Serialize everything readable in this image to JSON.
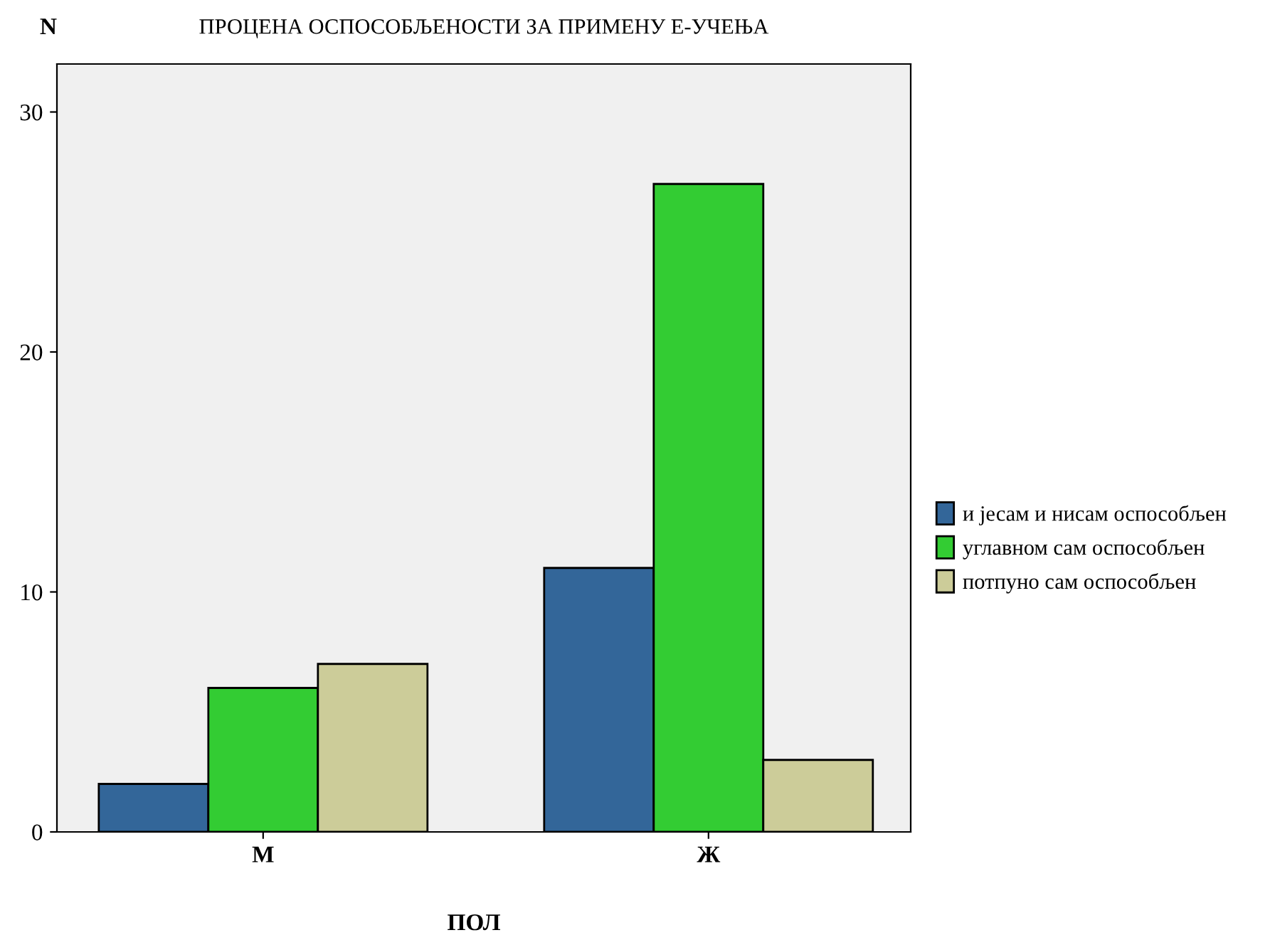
{
  "chart_data": {
    "type": "bar",
    "title": "ПРОЦЕНА ОСПОСОБЉЕНОСТИ ЗА ПРИМЕНУ Е-УЧЕЊА",
    "ylabel": "N",
    "xlabel": "ПОЛ",
    "categories": [
      "М",
      "Ж"
    ],
    "series": [
      {
        "name": "и јесам и нисам оспособљен",
        "color": "#336699",
        "values": [
          2,
          11
        ]
      },
      {
        "name": "углавном сам оспособљен",
        "color": "#33cc33",
        "values": [
          6,
          27
        ]
      },
      {
        "name": "потпуно сам оспособљен",
        "color": "#cccc99",
        "values": [
          7,
          3
        ]
      }
    ],
    "ylim": [
      0,
      32
    ],
    "yticks": [
      0,
      10,
      20,
      30
    ],
    "grid": false,
    "legend": "right"
  }
}
